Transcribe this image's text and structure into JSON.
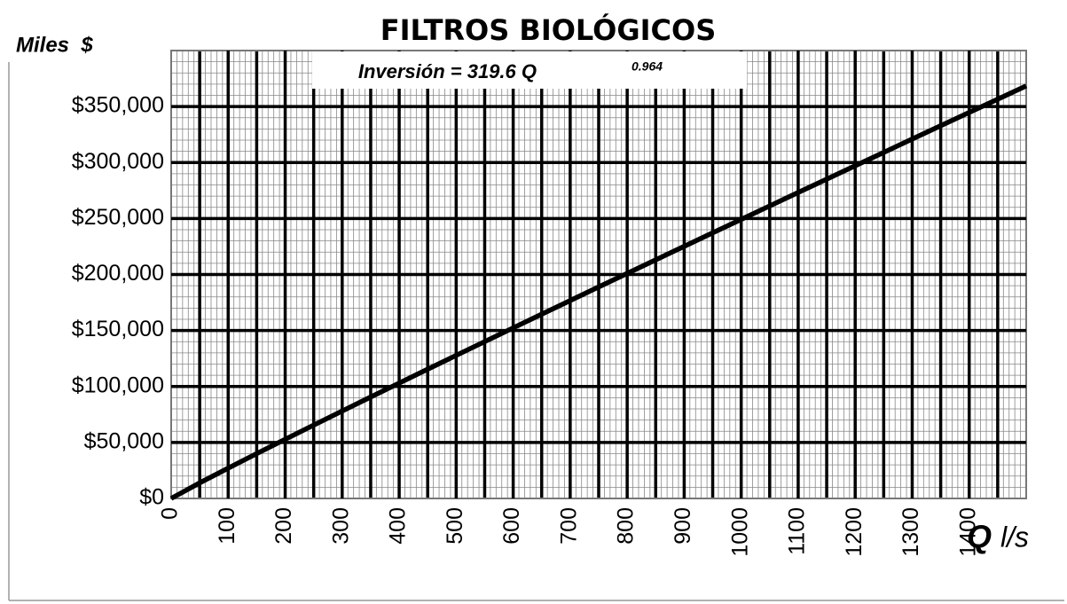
{
  "chart_data": {
    "type": "line",
    "title": "FILTROS BIOLÓGICOS",
    "ylabel": "Miles  $",
    "annotation": "Inversión = 319.6 Q",
    "annotation_exponent": "0.964",
    "xlabel": "Q",
    "xlabel_unit": "l/s",
    "x": [
      0,
      50,
      100,
      150,
      200,
      250,
      300,
      350,
      400,
      450,
      500,
      550,
      600,
      650,
      700,
      750,
      800,
      850,
      900,
      950,
      1000,
      1050,
      1100,
      1150,
      1200,
      1250,
      1300,
      1350,
      1400,
      1450,
      1500
    ],
    "series": [
      {
        "name": "Inversión",
        "color": "#000000",
        "values": [
          0,
          13882,
          27077,
          40030,
          52830,
          65490,
          78080,
          90600,
          103040,
          115440,
          127780,
          140050,
          152320,
          164530,
          176710,
          188880,
          201000,
          213080,
          225160,
          237210,
          249220,
          261240,
          273230,
          285170,
          297100,
          309050,
          320970,
          332830,
          344720,
          356550,
          368430
        ]
      }
    ],
    "xlim": [
      0,
      1500
    ],
    "xticks": [
      0,
      100,
      200,
      300,
      400,
      500,
      600,
      700,
      800,
      900,
      1000,
      1100,
      1200,
      1300,
      1400
    ],
    "ylim": [
      0,
      400000
    ],
    "yticks": [
      {
        "value": 0,
        "label": "$0"
      },
      {
        "value": 50000,
        "label": "$50,000"
      },
      {
        "value": 100000,
        "label": "$100,000"
      },
      {
        "value": 150000,
        "label": "$150,000"
      },
      {
        "value": 200000,
        "label": "$200,000"
      },
      {
        "value": 250000,
        "label": "$250,000"
      },
      {
        "value": 300000,
        "label": "$300,000"
      },
      {
        "value": 350000,
        "label": "$350,000"
      }
    ],
    "grid": true
  }
}
